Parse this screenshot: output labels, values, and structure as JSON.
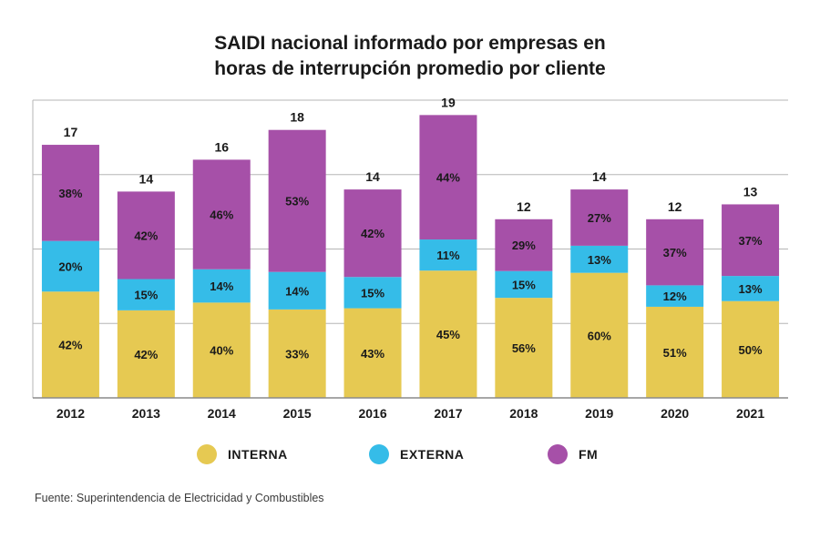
{
  "chart_data": {
    "type": "bar",
    "stacked": true,
    "title_lines": [
      "SAIDI nacional informado por empresas en",
      "horas de interrupción promedio por cliente"
    ],
    "categories": [
      "2012",
      "2013",
      "2014",
      "2015",
      "2016",
      "2017",
      "2018",
      "2019",
      "2020",
      "2021"
    ],
    "totals": [
      17,
      14,
      16,
      18,
      14,
      19,
      12,
      14,
      12,
      13
    ],
    "series": [
      {
        "name": "INTERNA",
        "color": "#e6c952",
        "percents": [
          42,
          42,
          40,
          33,
          43,
          45,
          56,
          60,
          51,
          50
        ]
      },
      {
        "name": "EXTERNA",
        "color": "#35bce8",
        "percents": [
          20,
          15,
          14,
          14,
          15,
          11,
          15,
          13,
          12,
          13
        ]
      },
      {
        "name": "FM",
        "color": "#a650a8",
        "percents": [
          38,
          42,
          46,
          53,
          42,
          44,
          29,
          27,
          37,
          37
        ]
      }
    ],
    "ylim": [
      0,
      20
    ],
    "grid": true,
    "legend_position": "bottom"
  },
  "source": "Fuente: Superintendencia de Electricidad y Combustibles"
}
